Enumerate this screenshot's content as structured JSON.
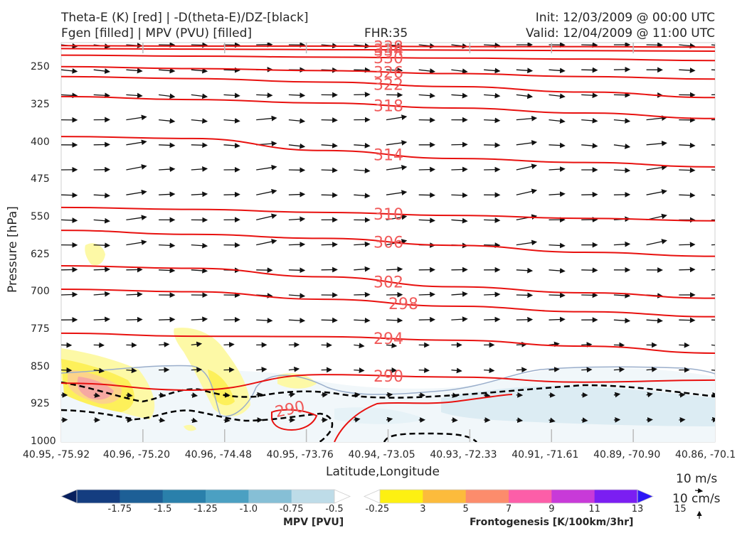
{
  "header": {
    "line1_left": "Theta-E (K) [red] | -D(theta-E)/DZ-[black]",
    "line2_left": "Fgen [filled] | MPV (PVU) [filled]",
    "center": "FHR:35",
    "line1_right": "Init: 12/03/2009 @ 00:00 UTC",
    "line2_right": "Valid: 12/04/2009 @ 11:00 UTC"
  },
  "chart_data": {
    "type": "cross-section",
    "ylabel": "Pressure [hPa]",
    "xlabel": "Latitude,Longitude",
    "y_ticks": [
      "250",
      "325",
      "400",
      "475",
      "550",
      "625",
      "700",
      "775",
      "850",
      "925",
      "1000"
    ],
    "x_ticks": [
      "40.95, -75.92",
      "40.96, -75.20",
      "40.96, -74.48",
      "40.95, -73.76",
      "40.94, -73.05",
      "40.93, -72.33",
      "40.91, -71.61",
      "40.89, -70.90",
      "40.86, -70.1"
    ],
    "ylim": [
      1000,
      200
    ],
    "theta_e_contours": [
      {
        "label": "338",
        "p": [
          206,
          207,
          207,
          208,
          208,
          209
        ]
      },
      {
        "label": "334",
        "p": [
          212,
          213,
          214,
          215,
          216,
          217
        ]
      },
      {
        "label": "330",
        "p": [
          225,
          227,
          229,
          231,
          233,
          236
        ]
      },
      {
        "label": "326",
        "p": [
          248,
          252,
          256,
          262,
          268,
          273
        ]
      },
      {
        "label": "322",
        "p": [
          268,
          272,
          279,
          288,
          299,
          310
        ]
      },
      {
        "label": "318",
        "p": [
          308,
          314,
          321,
          331,
          341,
          352
        ]
      },
      {
        "label": "314",
        "p": [
          388,
          392,
          416,
          432,
          440,
          449
        ]
      },
      {
        "label": "310",
        "p": [
          530,
          534,
          540,
          546,
          552,
          557
        ]
      },
      {
        "label": "306",
        "p": [
          576,
          584,
          592,
          606,
          620,
          628
        ]
      },
      {
        "label": "302",
        "p": [
          647,
          652,
          669,
          689,
          701,
          712
        ]
      },
      {
        "label": "298",
        "p": [
          694,
          699,
          714,
          728,
          739,
          749
        ]
      },
      {
        "label": "294",
        "p": [
          782,
          788,
          789,
          796,
          808,
          822
        ]
      },
      {
        "label": "290",
        "p": [
          882,
          896,
          865,
          870,
          880,
          876
        ]
      }
    ],
    "mpv_colorbar": {
      "title": "MPV [PVU]",
      "labels": [
        "-1.75",
        "-1.5",
        "-1.25",
        "-1.0",
        "-0.75",
        "-0.5",
        "-0.25"
      ],
      "colors": [
        "#08205e",
        "#143d80",
        "#1d5f96",
        "#2a80ab",
        "#4ba0c2",
        "#86bfd6",
        "#bedce8",
        "#ffffff"
      ]
    },
    "fgen_colorbar": {
      "title": "Frontogenesis [K/100km/3hr]",
      "labels": [
        "3",
        "5",
        "7",
        "9",
        "11",
        "13",
        "15"
      ],
      "colors": [
        "#ffffff",
        "#fdf012",
        "#fcbb3c",
        "#fc8c6c",
        "#fc5ea8",
        "#c83ad8",
        "#7b1ef2",
        "#2d18f6"
      ]
    },
    "reference_vectors": {
      "horizontal": "10 m/s",
      "vertical": "10 cm/s"
    }
  }
}
